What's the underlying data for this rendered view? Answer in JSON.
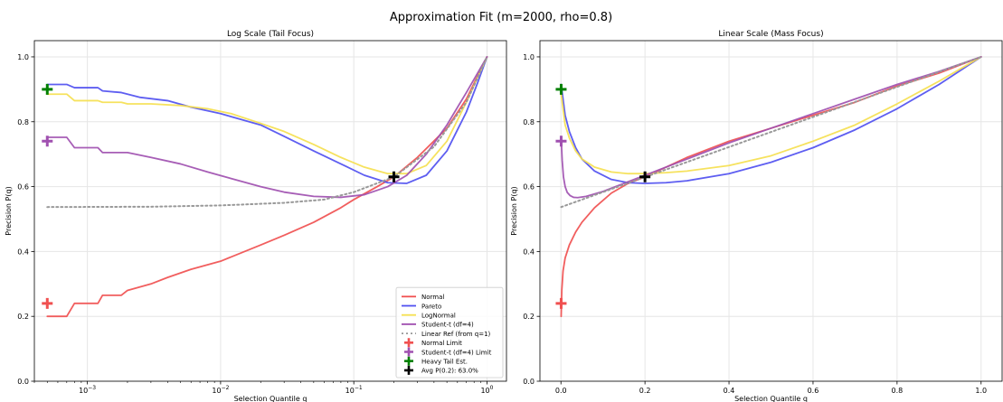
{
  "figure": {
    "suptitle": "Approximation Fit (m=2000, rho=0.8)"
  },
  "colors": {
    "normal": "#f05050",
    "pareto": "#5050f0",
    "lognormal": "#f5e050",
    "student_t": "#a050b0",
    "linear_ref": "#999999",
    "heavy_tail": "#008000",
    "avg": "#000000"
  },
  "chart_data": [
    {
      "type": "line",
      "title": "Log Scale (Tail Focus)",
      "xlabel": "Selection Quantile q",
      "ylabel": "Precision P(q)",
      "xscale": "log",
      "xlim": [
        0.0004,
        1.4
      ],
      "ylim": [
        0.0,
        1.05
      ],
      "xticks": [
        0.001,
        0.01,
        0.1,
        1
      ],
      "xtick_labels": [
        "10^-3",
        "10^-2",
        "10^-1",
        "10^0"
      ],
      "yticks": [
        0.0,
        0.2,
        0.4,
        0.6,
        0.8,
        1.0
      ],
      "ytick_labels": [
        "0.0",
        "0.2",
        "0.4",
        "0.6",
        "0.8",
        "1.0"
      ],
      "grid": true,
      "legend": "lower-right",
      "series": [
        {
          "name": "Normal",
          "color": "#f05050",
          "x": [
            0.0005,
            0.0007,
            0.0008,
            0.0012,
            0.0013,
            0.0018,
            0.002,
            0.003,
            0.004,
            0.006,
            0.01,
            0.02,
            0.03,
            0.05,
            0.08,
            0.1,
            0.15,
            0.2,
            0.3,
            0.5,
            0.7,
            1.0
          ],
          "y": [
            0.2,
            0.2,
            0.24,
            0.24,
            0.265,
            0.265,
            0.28,
            0.3,
            0.32,
            0.345,
            0.37,
            0.42,
            0.45,
            0.49,
            0.535,
            0.56,
            0.6,
            0.63,
            0.69,
            0.78,
            0.87,
            1.0
          ]
        },
        {
          "name": "Pareto",
          "color": "#5050f0",
          "x": [
            0.0005,
            0.0007,
            0.0008,
            0.0012,
            0.0013,
            0.0018,
            0.0025,
            0.004,
            0.006,
            0.01,
            0.02,
            0.03,
            0.05,
            0.08,
            0.12,
            0.18,
            0.25,
            0.35,
            0.5,
            0.7,
            0.85,
            1.0
          ],
          "y": [
            0.915,
            0.915,
            0.905,
            0.905,
            0.895,
            0.89,
            0.875,
            0.865,
            0.845,
            0.825,
            0.79,
            0.755,
            0.71,
            0.67,
            0.635,
            0.612,
            0.61,
            0.635,
            0.71,
            0.83,
            0.92,
            1.0
          ]
        },
        {
          "name": "LogNormal",
          "color": "#f5e050",
          "x": [
            0.0005,
            0.0007,
            0.0008,
            0.0012,
            0.0013,
            0.0018,
            0.002,
            0.003,
            0.005,
            0.008,
            0.012,
            0.02,
            0.03,
            0.05,
            0.08,
            0.12,
            0.18,
            0.25,
            0.35,
            0.5,
            0.7,
            1.0
          ],
          "y": [
            0.885,
            0.885,
            0.865,
            0.865,
            0.86,
            0.86,
            0.855,
            0.855,
            0.85,
            0.84,
            0.825,
            0.795,
            0.77,
            0.73,
            0.69,
            0.66,
            0.64,
            0.64,
            0.665,
            0.74,
            0.86,
            1.0
          ]
        },
        {
          "name": "Student-t (df=4)",
          "color": "#a050b0",
          "x": [
            0.0005,
            0.0007,
            0.0008,
            0.0012,
            0.0013,
            0.002,
            0.003,
            0.005,
            0.008,
            0.012,
            0.02,
            0.03,
            0.05,
            0.08,
            0.12,
            0.18,
            0.25,
            0.35,
            0.5,
            0.7,
            1.0
          ],
          "y": [
            0.752,
            0.752,
            0.72,
            0.72,
            0.705,
            0.705,
            0.69,
            0.67,
            0.645,
            0.625,
            0.6,
            0.583,
            0.57,
            0.567,
            0.575,
            0.6,
            0.635,
            0.7,
            0.79,
            0.89,
            1.0
          ]
        },
        {
          "name": "Linear Ref (from q=1)",
          "color": "#999999",
          "dashed": true,
          "x": [
            0.0005,
            0.003,
            0.01,
            0.03,
            0.06,
            0.1,
            0.2,
            0.4,
            0.7,
            1.0
          ],
          "y": [
            0.537,
            0.538,
            0.542,
            0.55,
            0.56,
            0.583,
            0.63,
            0.723,
            0.86,
            1.0
          ]
        }
      ],
      "markers": [
        {
          "name": "Normal Limit",
          "color": "#f05050",
          "x": 0.0005,
          "y": 0.24
        },
        {
          "name": "Student-t (df=4) Limit",
          "color": "#a050b0",
          "x": 0.0005,
          "y": 0.74
        },
        {
          "name": "Heavy Tail Est.",
          "color": "#008000",
          "x": 0.0005,
          "y": 0.9
        },
        {
          "name": "Avg P(0.2): 63.0%",
          "color": "#000000",
          "x": 0.2,
          "y": 0.63
        }
      ]
    },
    {
      "type": "line",
      "title": "Linear Scale (Mass Focus)",
      "xlabel": "Selection Quantile q",
      "ylabel": "Precision P(q)",
      "xscale": "linear",
      "xlim": [
        -0.05,
        1.05
      ],
      "ylim": [
        0.0,
        1.05
      ],
      "xticks": [
        0.0,
        0.2,
        0.4,
        0.6,
        0.8,
        1.0
      ],
      "xtick_labels": [
        "0.0",
        "0.2",
        "0.4",
        "0.6",
        "0.8",
        "1.0"
      ],
      "yticks": [
        0.0,
        0.2,
        0.4,
        0.6,
        0.8,
        1.0
      ],
      "ytick_labels": [
        "0.0",
        "0.2",
        "0.4",
        "0.6",
        "0.8",
        "1.0"
      ],
      "grid": true,
      "series": [
        {
          "name": "Normal",
          "color": "#f05050",
          "x": [
            0.0005,
            0.002,
            0.005,
            0.01,
            0.02,
            0.035,
            0.05,
            0.08,
            0.12,
            0.16,
            0.2,
            0.3,
            0.4,
            0.5,
            0.6,
            0.7,
            0.8,
            0.9,
            1.0
          ],
          "y": [
            0.2,
            0.28,
            0.34,
            0.38,
            0.42,
            0.46,
            0.49,
            0.535,
            0.58,
            0.61,
            0.63,
            0.69,
            0.74,
            0.78,
            0.82,
            0.86,
            0.91,
            0.95,
            1.0
          ]
        },
        {
          "name": "Pareto",
          "color": "#5050f0",
          "x": [
            0.0005,
            0.01,
            0.02,
            0.035,
            0.05,
            0.08,
            0.12,
            0.16,
            0.2,
            0.25,
            0.3,
            0.4,
            0.5,
            0.6,
            0.7,
            0.8,
            0.9,
            1.0
          ],
          "y": [
            0.915,
            0.82,
            0.77,
            0.72,
            0.685,
            0.648,
            0.622,
            0.612,
            0.61,
            0.612,
            0.618,
            0.64,
            0.675,
            0.72,
            0.775,
            0.84,
            0.915,
            1.0
          ]
        },
        {
          "name": "LogNormal",
          "color": "#f5e050",
          "x": [
            0.0005,
            0.01,
            0.02,
            0.035,
            0.05,
            0.08,
            0.12,
            0.16,
            0.2,
            0.25,
            0.3,
            0.4,
            0.5,
            0.6,
            0.7,
            0.8,
            0.9,
            1.0
          ],
          "y": [
            0.885,
            0.79,
            0.75,
            0.71,
            0.685,
            0.66,
            0.645,
            0.64,
            0.64,
            0.643,
            0.648,
            0.665,
            0.695,
            0.74,
            0.79,
            0.855,
            0.925,
            1.0
          ]
        },
        {
          "name": "Student-t (df=4)",
          "color": "#a050b0",
          "x": [
            0.0005,
            0.003,
            0.006,
            0.01,
            0.015,
            0.022,
            0.03,
            0.04,
            0.06,
            0.1,
            0.15,
            0.2,
            0.3,
            0.4,
            0.5,
            0.6,
            0.7,
            0.8,
            0.9,
            1.0
          ],
          "y": [
            0.75,
            0.68,
            0.63,
            0.6,
            0.582,
            0.572,
            0.567,
            0.566,
            0.57,
            0.585,
            0.61,
            0.635,
            0.685,
            0.735,
            0.78,
            0.825,
            0.87,
            0.915,
            0.955,
            1.0
          ]
        },
        {
          "name": "Linear Ref (from q=1)",
          "color": "#999999",
          "dashed": true,
          "x": [
            0.0005,
            1.0
          ],
          "y": [
            0.537,
            1.0
          ]
        }
      ],
      "markers": [
        {
          "name": "Normal Limit",
          "color": "#f05050",
          "x": 0.0005,
          "y": 0.24
        },
        {
          "name": "Student-t (df=4) Limit",
          "color": "#a050b0",
          "x": 0.0005,
          "y": 0.74
        },
        {
          "name": "Heavy Tail Est.",
          "color": "#008000",
          "x": 0.0005,
          "y": 0.9
        },
        {
          "name": "Avg P(0.2): 63.0%",
          "color": "#000000",
          "x": 0.2,
          "y": 0.63
        }
      ]
    }
  ]
}
